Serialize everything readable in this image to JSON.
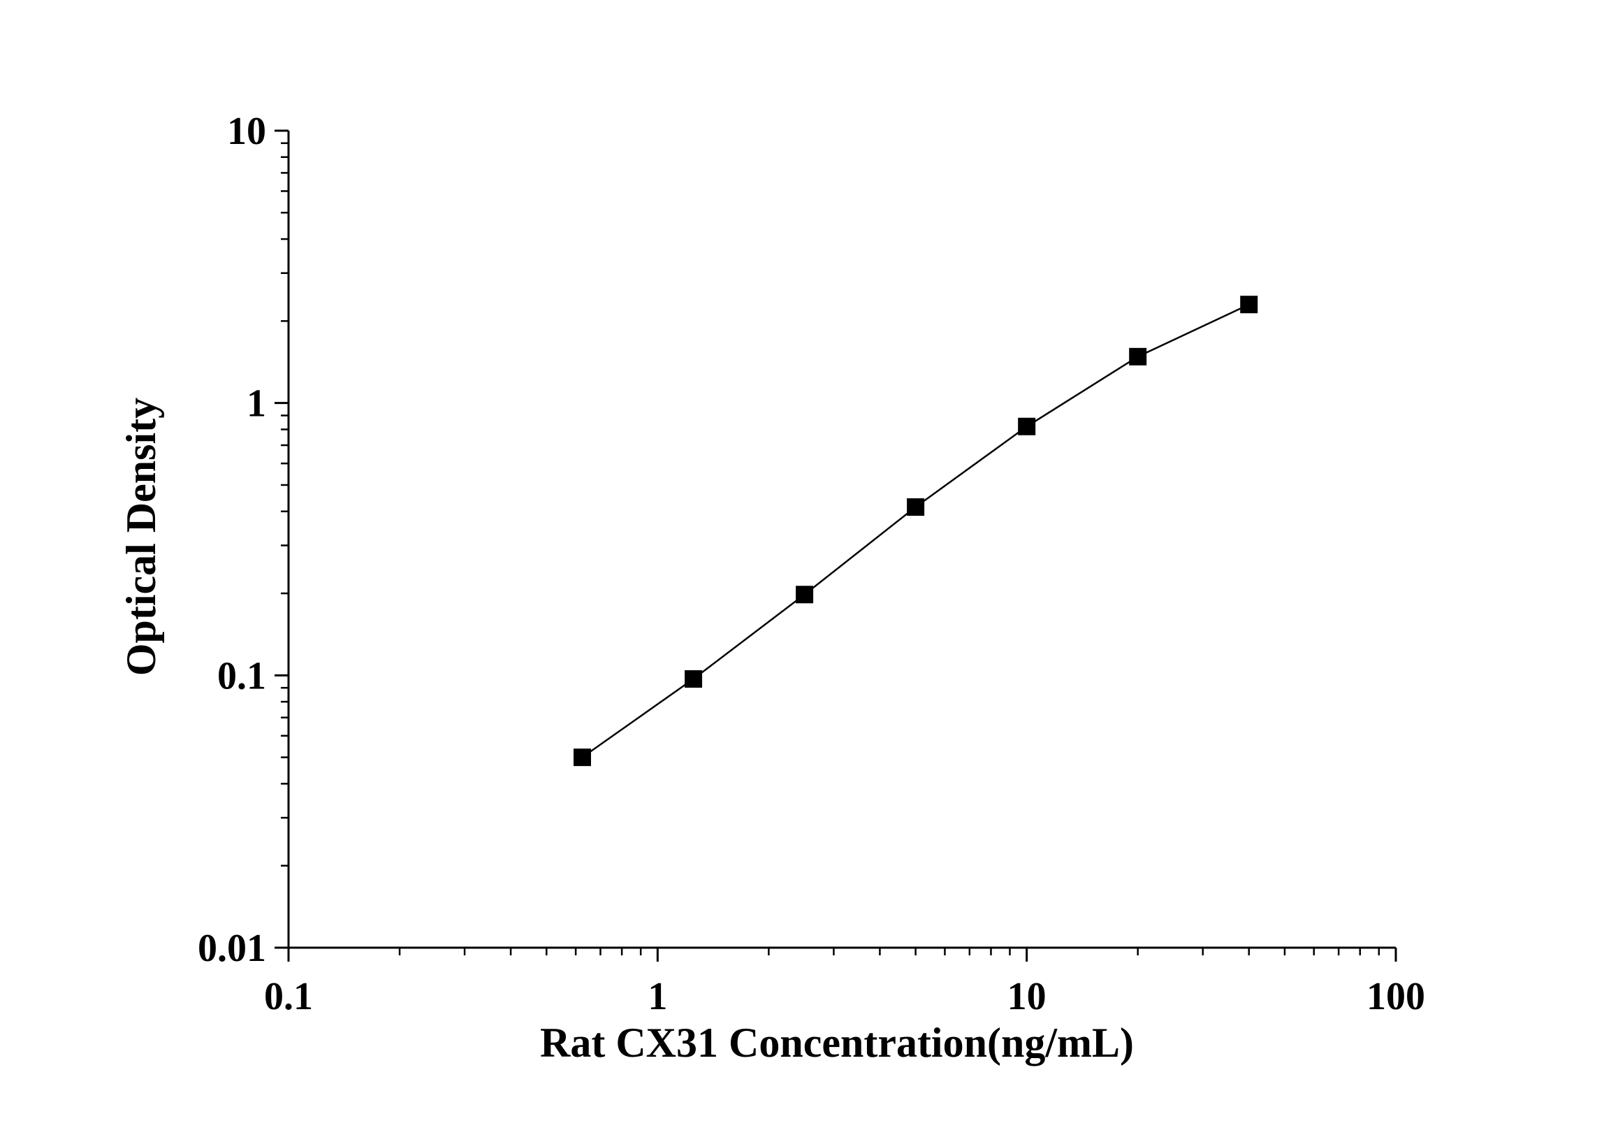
{
  "chart_data": {
    "type": "line",
    "xscale": "log",
    "yscale": "log",
    "xlabel": "Rat CX31 Concentration(ng/mL)",
    "ylabel": "Optical Density",
    "xlim": [
      0.1,
      100
    ],
    "ylim": [
      0.01,
      10
    ],
    "x_ticks": [
      0.1,
      1,
      10,
      100
    ],
    "x_tick_labels": [
      "0.1",
      "1",
      "10",
      "100"
    ],
    "y_ticks": [
      0.01,
      0.1,
      1,
      10
    ],
    "y_tick_labels": [
      "0.01",
      "0.1",
      "1",
      "10"
    ],
    "grid": false,
    "legend": "none",
    "series": [
      {
        "x": [
          0.625,
          1.25,
          2.5,
          5,
          10,
          20,
          40
        ],
        "y": [
          0.05,
          0.097,
          0.198,
          0.415,
          0.82,
          1.48,
          2.3
        ],
        "marker": "square",
        "color": "#000000"
      }
    ]
  }
}
